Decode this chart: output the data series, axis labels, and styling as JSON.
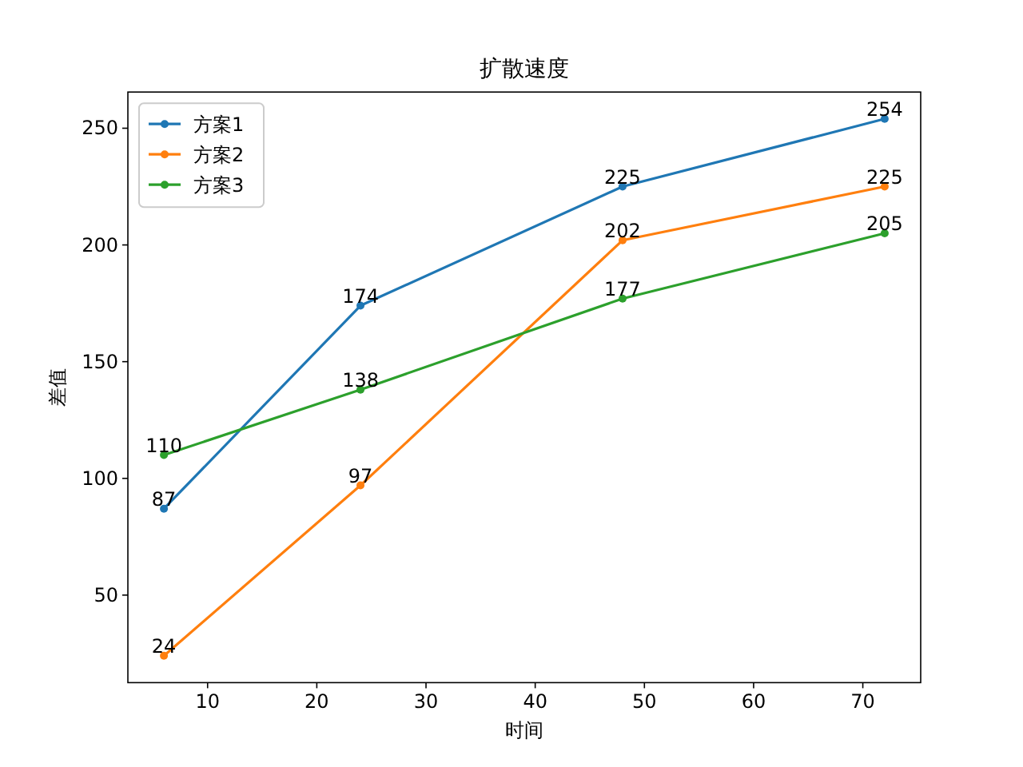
{
  "chart_data": {
    "type": "line",
    "title": "扩散速度",
    "xlabel": "时间",
    "ylabel": "差值",
    "x": [
      6,
      24,
      48,
      72
    ],
    "series": [
      {
        "name": "方案1",
        "color": "#1f77b4",
        "values": [
          87,
          174,
          225,
          254
        ]
      },
      {
        "name": "方案2",
        "color": "#ff7f0e",
        "values": [
          24,
          97,
          202,
          225
        ]
      },
      {
        "name": "方案3",
        "color": "#2ca02c",
        "values": [
          110,
          138,
          177,
          205
        ]
      }
    ],
    "xlim": [
      2.7,
      75.3
    ],
    "ylim": [
      12.5,
      265.5
    ],
    "xticks": [
      10,
      20,
      30,
      40,
      50,
      60,
      70
    ],
    "yticks": [
      50,
      100,
      150,
      200,
      250
    ],
    "marker": "circle",
    "line_style": "solid",
    "legend": "top left",
    "grid": false,
    "data_labels": true
  }
}
